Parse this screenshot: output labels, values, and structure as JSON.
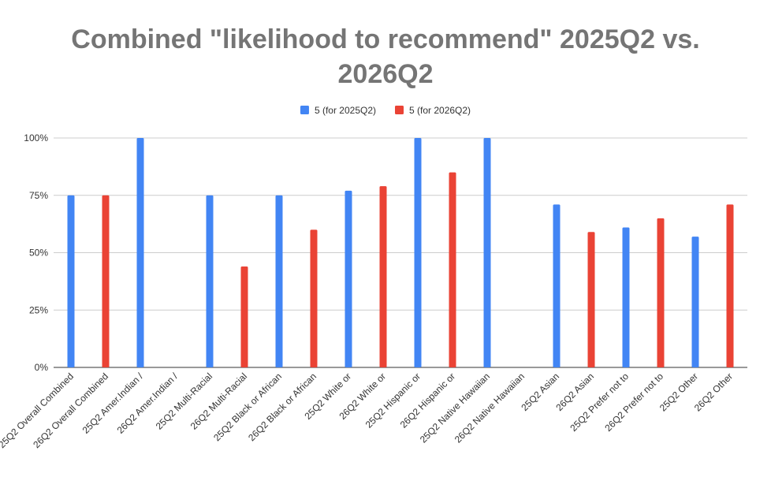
{
  "chart_data": {
    "type": "bar",
    "title_line1": "Combined \"likelihood to recommend\" 2025Q2 vs.",
    "title_line2": "2026Q2",
    "xlabel": "",
    "ylabel": "",
    "ylim": [
      0,
      100
    ],
    "yticks": [
      "0%",
      "25%",
      "50%",
      "75%",
      "100%"
    ],
    "grid": true,
    "legend_position": "top",
    "categories": [
      "25Q2 Overall Combined",
      "26Q2 Overall Combined",
      "25Q2 Amer.Indian /",
      "26Q2 Amer.Indian /",
      "25Q2 Multi-Racial",
      "26Q2 Multi-Racial",
      "25Q2 Black or African",
      "26Q2 Black or African",
      "25Q2 White or",
      "26Q2 White or",
      "25Q2 Hispanic or",
      "26Q2 Hispanic or",
      "25Q2 Native Hawaiian",
      "26Q2 Native Hawaiian",
      "25Q2 Asian",
      "26Q2 Asian",
      "25Q2 Prefer not to",
      "26Q2 Prefer not to",
      "25Q2 Other",
      "26Q2 Other"
    ],
    "series": [
      {
        "name": "5 (for 2025Q2)",
        "color": "#4285f4",
        "values": [
          75,
          null,
          100,
          null,
          75,
          null,
          75,
          null,
          77,
          null,
          100,
          null,
          100,
          null,
          71,
          null,
          61,
          null,
          57,
          null
        ]
      },
      {
        "name": "5 (for 2026Q2)",
        "color": "#ea4335",
        "values": [
          null,
          75,
          null,
          null,
          null,
          44,
          null,
          60,
          null,
          79,
          null,
          85,
          null,
          null,
          null,
          59,
          null,
          65,
          null,
          71
        ]
      }
    ]
  }
}
